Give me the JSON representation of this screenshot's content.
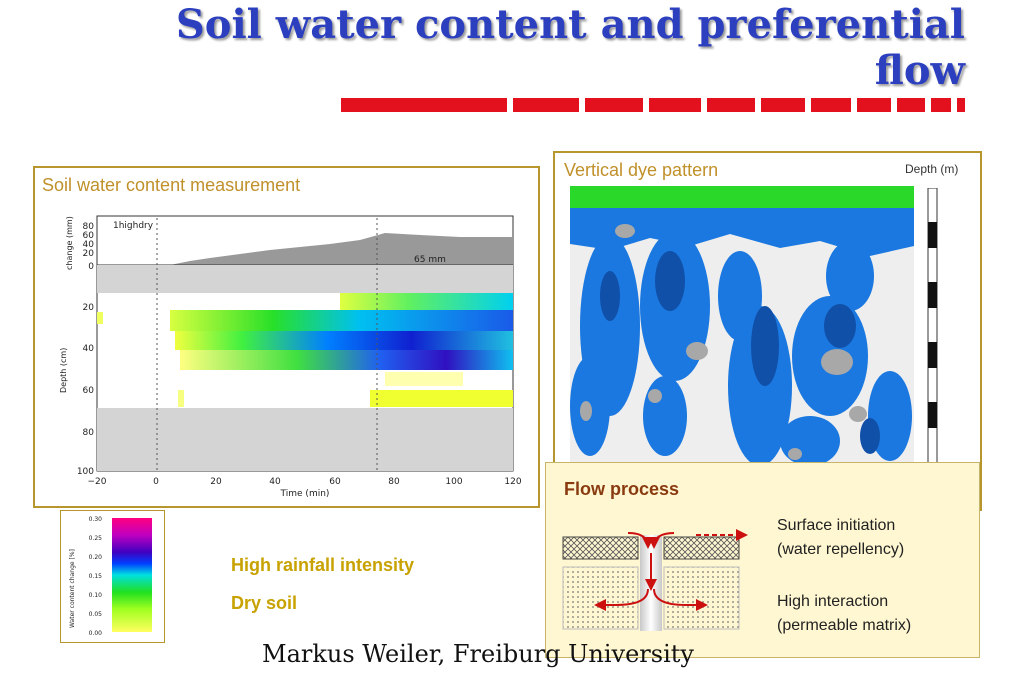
{
  "slide": {
    "title_line1": "Soil water content and preferential",
    "title_line2": "flow",
    "footer": "Markus Weiler, Freiburg University",
    "accent_color": "#e3101d",
    "title_color": "#2b3fbf"
  },
  "left_panel": {
    "label": "Soil water content measurement",
    "top_plot": {
      "run_label": "1highdry",
      "ylabel": "change (mm)",
      "y_ticks": [
        "80",
        "60",
        "40",
        "20",
        "0"
      ],
      "annotation": "65 mm"
    },
    "main_plot": {
      "ylabel": "Depth (cm)",
      "xlabel": "Time (min)",
      "y_ticks": [
        "20",
        "40",
        "60",
        "80",
        "100"
      ],
      "x_ticks": [
        "−20",
        "0",
        "20",
        "40",
        "60",
        "80",
        "100",
        "120"
      ]
    }
  },
  "colorbar": {
    "label": "Water content change [%]",
    "ticks": [
      "0.30",
      "0.25",
      "0.20",
      "0.15",
      "0.10",
      "0.05",
      "0.00"
    ]
  },
  "conditions": {
    "line1": "High rainfall intensity",
    "line2": "Dry soil"
  },
  "right_panel": {
    "label": "Vertical dye pattern",
    "scale_label": "Depth (m)"
  },
  "flow_process": {
    "title": "Flow process",
    "note1_line1": "Surface initiation",
    "note1_line2": "(water repellency)",
    "note2_line1": "High interaction",
    "note2_line2": "(permeable matrix)"
  }
}
